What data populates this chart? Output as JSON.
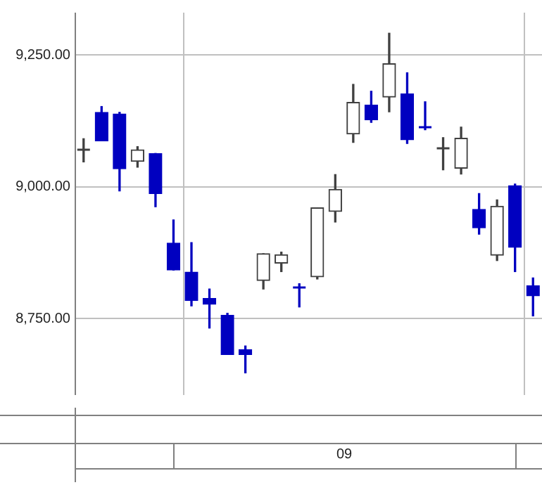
{
  "chart_data": {
    "type": "candlestick",
    "categories": [
      null,
      null,
      null,
      null,
      null,
      null,
      null,
      null,
      null,
      null,
      null,
      null,
      null,
      null,
      null,
      null,
      null,
      null,
      null,
      null,
      null,
      null,
      null,
      null,
      null,
      null
    ],
    "ohlc": [
      [
        9072,
        9091,
        9047,
        9072
      ],
      [
        9141,
        9152,
        9087,
        9087
      ],
      [
        9138,
        9141,
        8992,
        9034
      ],
      [
        9048,
        9076,
        9037,
        9070
      ],
      [
        9063,
        9063,
        8962,
        8987
      ],
      [
        8893,
        8937,
        8842,
        8842
      ],
      [
        8838,
        8894,
        8774,
        8784
      ],
      [
        8788,
        8806,
        8732,
        8777
      ],
      [
        8756,
        8760,
        8682,
        8682
      ],
      [
        8691,
        8698,
        8647,
        8682
      ],
      [
        8822,
        8873,
        8806,
        8873
      ],
      [
        8855,
        8876,
        8839,
        8871
      ],
      [
        8810,
        8816,
        8772,
        8810
      ],
      [
        8829,
        8960,
        8825,
        8960
      ],
      [
        8953,
        9023,
        8933,
        8995
      ],
      [
        9100,
        9194,
        9084,
        9160
      ],
      [
        9155,
        9181,
        9122,
        9127
      ],
      [
        9170,
        9291,
        9142,
        9233
      ],
      [
        9176,
        9216,
        9082,
        9089
      ],
      [
        9113,
        9161,
        9108,
        9113
      ],
      [
        9073,
        9093,
        9032,
        9073
      ],
      [
        9035,
        9113,
        9024,
        9092
      ],
      [
        8957,
        8987,
        8910,
        8922
      ],
      [
        8870,
        8975,
        8860,
        8963
      ],
      [
        9002,
        9005,
        8839,
        8885
      ],
      [
        8812,
        8827,
        8755,
        8793
      ]
    ],
    "colors": [
      "#404040",
      "#0000c0",
      "#0000c0",
      "#404040",
      "#0000c0",
      "#0000c0",
      "#0000c0",
      "#0000c0",
      "#0000c0",
      "#0000c0",
      "#404040",
      "#404040",
      "#0000c0",
      "#404040",
      "#404040",
      "#404040",
      "#0000c0",
      "#404040",
      "#0000c0",
      "#0000c0",
      "#404040",
      "#404040",
      "#0000c0",
      "#404040",
      "#0000c0",
      "#0000c0"
    ],
    "ylim": [
      8605,
      9330
    ],
    "yticks": [
      {
        "value": 8750,
        "label": "8,750.00"
      },
      {
        "value": 9000,
        "label": "9,000.00"
      },
      {
        "value": 9250,
        "label": "9,250.00"
      }
    ],
    "grid": true,
    "annotations": [
      "09"
    ]
  }
}
